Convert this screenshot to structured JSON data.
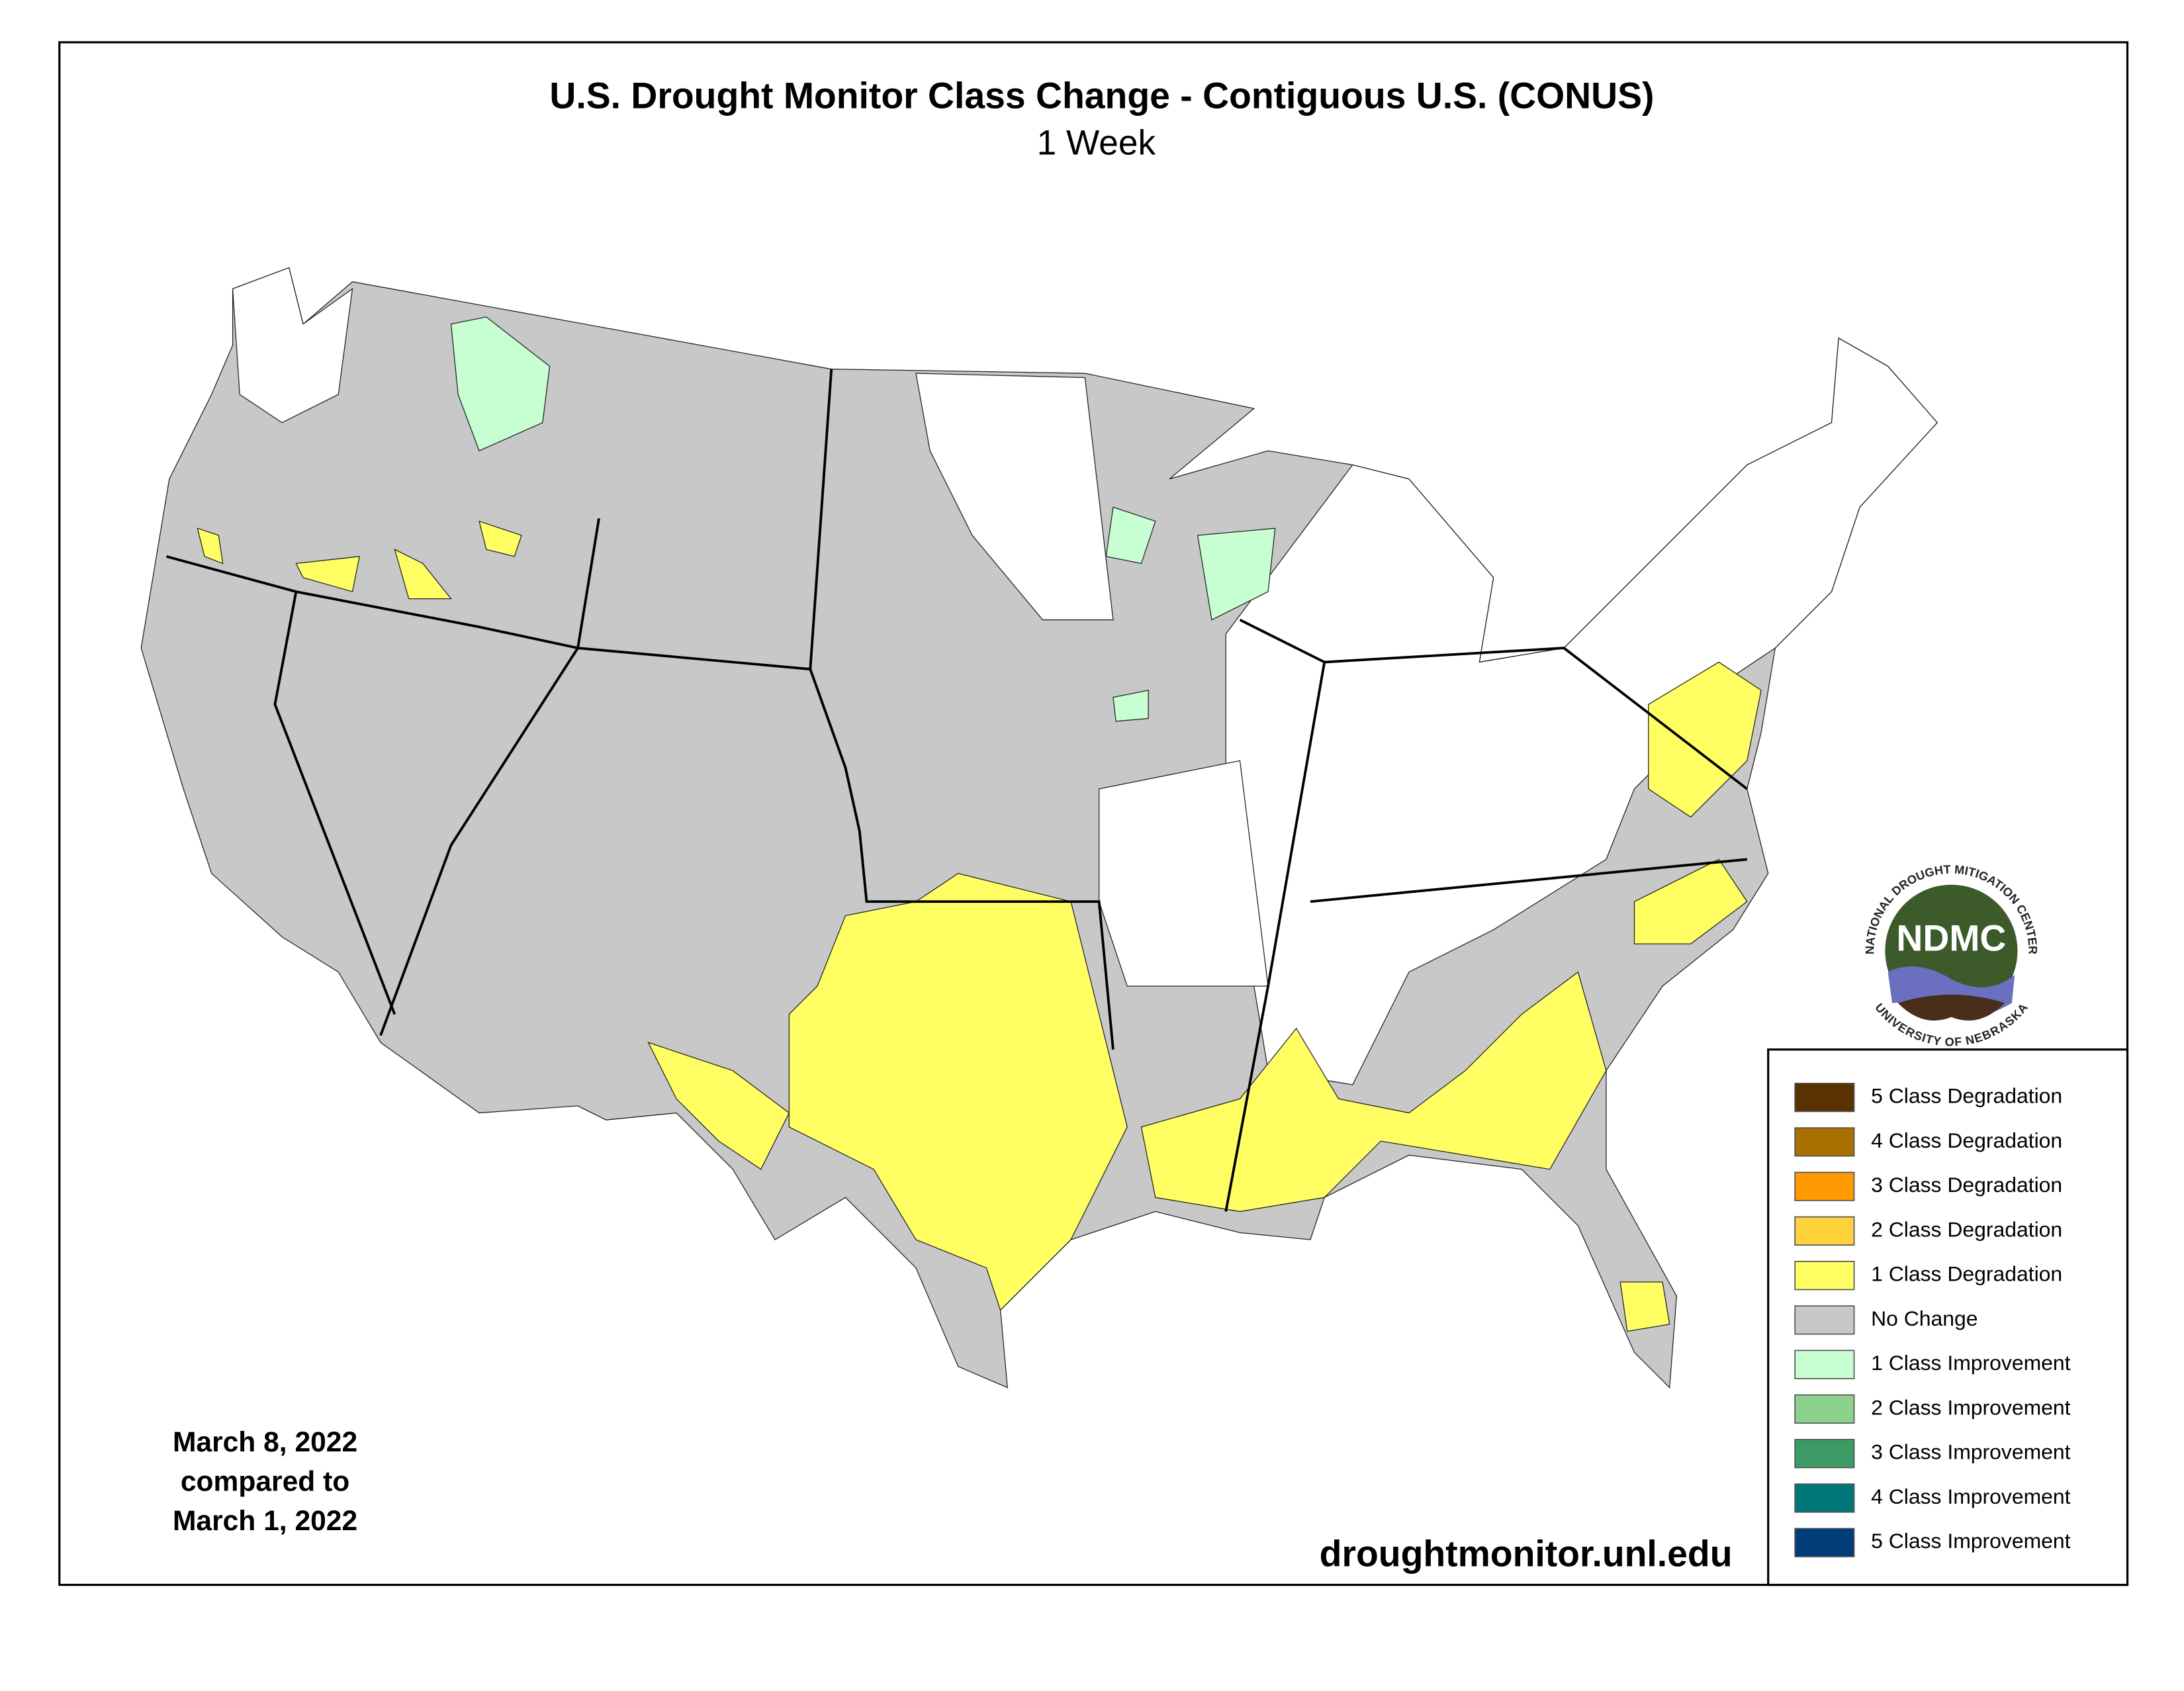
{
  "header": {
    "title": "U.S. Drought Monitor Class Change - Contiguous U.S. (CONUS)",
    "subtitle": "1 Week"
  },
  "date_note": [
    "March 8, 2022",
    "compared to",
    "March 1, 2022"
  ],
  "url": "droughtmonitor.unl.edu",
  "logo": {
    "acronym": "NDMC",
    "top_text": "NATIONAL DROUGHT MITIGATION CENTER",
    "bottom_text": "UNIVERSITY OF NEBRASKA"
  },
  "legend": [
    {
      "label": "5 Class Degradation",
      "color": "#5a3200"
    },
    {
      "label": "4 Class Degradation",
      "color": "#a87000"
    },
    {
      "label": "3 Class Degradation",
      "color": "#ff9a00"
    },
    {
      "label": "2 Class Degradation",
      "color": "#ffd23c"
    },
    {
      "label": "1 Class Degradation",
      "color": "#ffff64"
    },
    {
      "label": "No Change",
      "color": "#c8c8c8"
    },
    {
      "label": "1 Class Improvement",
      "color": "#c8ffd2"
    },
    {
      "label": "2 Class Improvement",
      "color": "#8cd28c"
    },
    {
      "label": "3 Class Improvement",
      "color": "#3c9a64"
    },
    {
      "label": "4 Class Improvement",
      "color": "#00787a"
    },
    {
      "label": "5 Class Improvement",
      "color": "#003c78"
    }
  ]
}
